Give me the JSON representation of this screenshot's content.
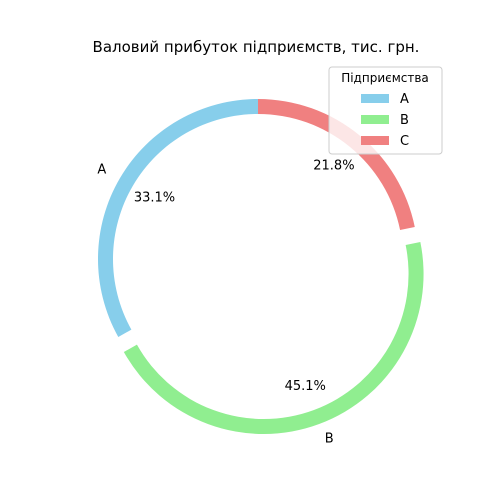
{
  "chart_data": {
    "type": "pie",
    "style": "donut",
    "title": "Валовий прибуток підприємств, тис. грн.",
    "start_angle_deg": 90,
    "direction": "counterclockwise",
    "slices": [
      {
        "label": "A",
        "percent_label": "33.1%",
        "value": 33.1,
        "color": "#87CEEB",
        "exploded": false,
        "show_label": true
      },
      {
        "label": "B",
        "percent_label": "45.1%",
        "value": 45.1,
        "color": "#90EE90",
        "exploded": true,
        "show_label": true
      },
      {
        "label": "C",
        "percent_label": "21.8%",
        "value": 21.8,
        "color": "#F08080",
        "exploded": false,
        "show_label": false
      }
    ],
    "legend": {
      "title": "Підприємства",
      "placement": "upper-right",
      "entries": [
        "A",
        "B",
        "C"
      ]
    }
  }
}
